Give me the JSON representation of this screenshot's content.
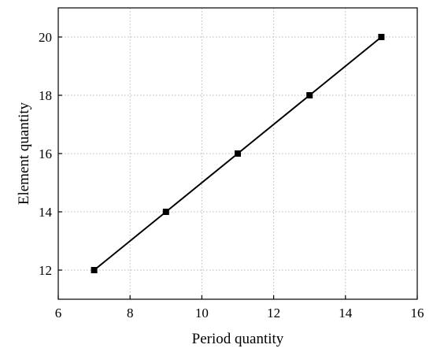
{
  "chart_data": {
    "type": "line",
    "title": "",
    "xlabel": "Period quantity",
    "ylabel": "Element quantity",
    "xlim": [
      6,
      16
    ],
    "ylim": [
      11,
      21
    ],
    "xticks": [
      6,
      8,
      10,
      12,
      14,
      16
    ],
    "yticks": [
      12,
      14,
      16,
      18,
      20
    ],
    "grid": true,
    "series": [
      {
        "x": [
          7,
          9,
          11,
          13,
          15
        ],
        "y": [
          12,
          14,
          16,
          18,
          20
        ],
        "marker": "square",
        "color": "#000000"
      }
    ]
  }
}
